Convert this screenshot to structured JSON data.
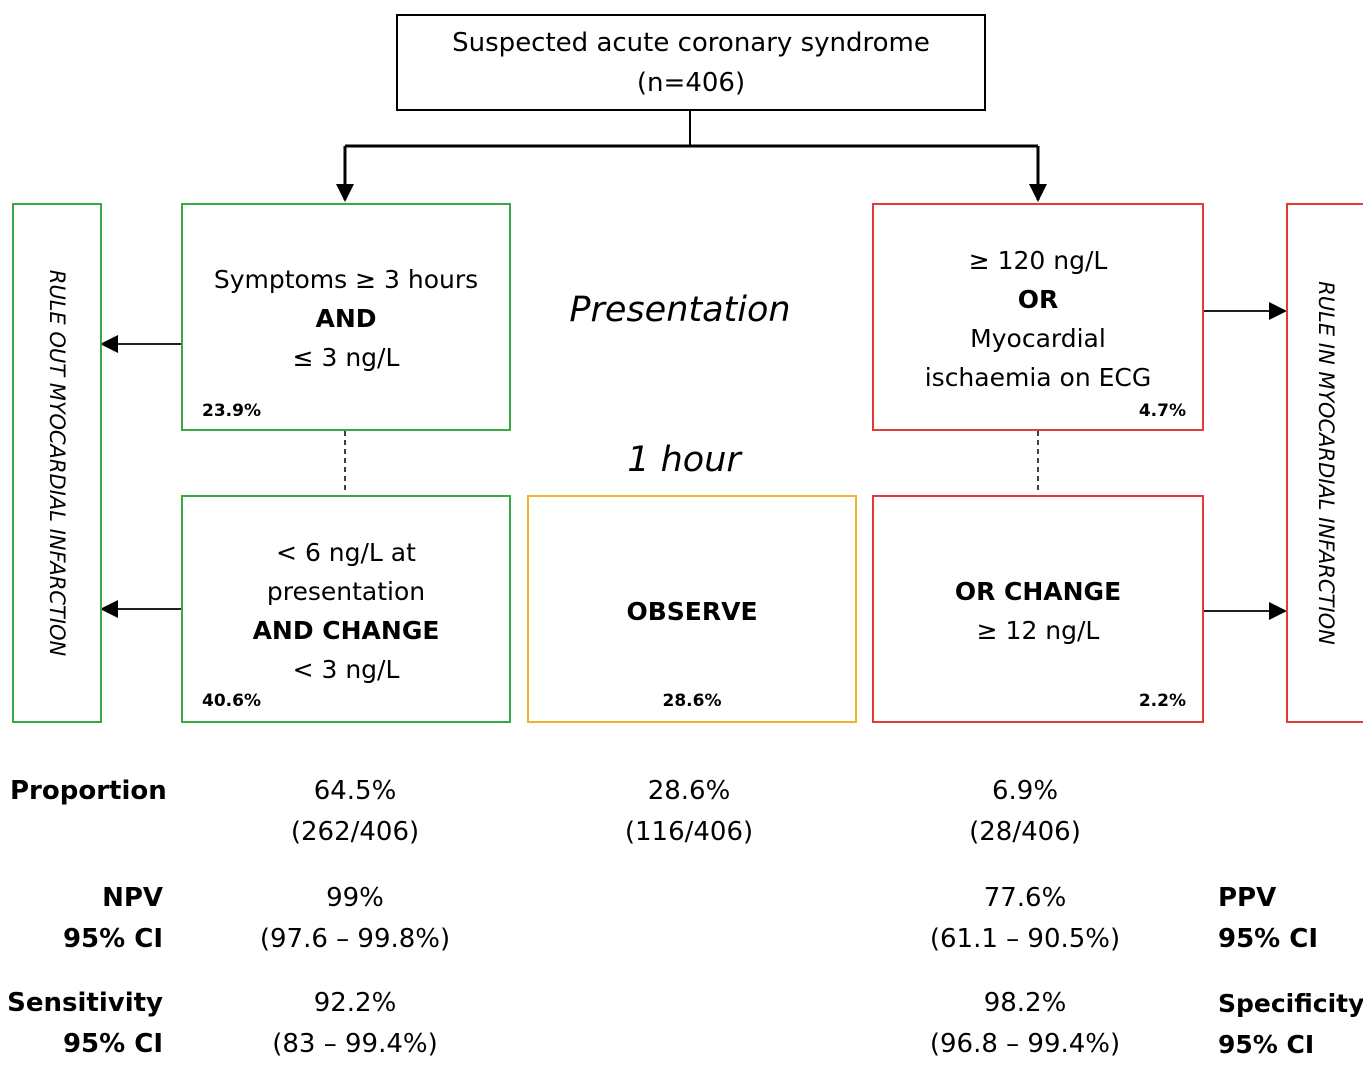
{
  "top_box": {
    "line1": "Suspected acute coronary syndrome",
    "line2": "(n=406)"
  },
  "side_labels": {
    "left": "RULE OUT MYOCARDIAL INFARCTION",
    "right": "RULE IN MYOCARDIAL INFARCTION"
  },
  "stages": {
    "presentation": "Presentation",
    "one_hour": "1 hour"
  },
  "boxes": {
    "rule_out_presentation": {
      "line1": "Symptoms ≥ 3 hours",
      "line2": "AND",
      "line3": "≤ 3 ng/L",
      "pct": "23.9%"
    },
    "rule_out_1h": {
      "line1": "< 6 ng/L at",
      "line2": "presentation",
      "line3": "AND CHANGE",
      "line4": "< 3 ng/L",
      "pct": "40.6%"
    },
    "observe": {
      "label": "OBSERVE",
      "pct": "28.6%"
    },
    "rule_in_presentation": {
      "line1": "≥ 120 ng/L",
      "line2": "OR",
      "line3": "Myocardial",
      "line4": "ischaemia on ECG",
      "pct": "4.7%"
    },
    "rule_in_1h": {
      "line1": "OR CHANGE",
      "line2": "≥ 12 ng/L",
      "pct": "2.2%"
    }
  },
  "stats": {
    "proportion": {
      "label": "Proportion",
      "rule_out": [
        "64.5%",
        "(262/406)"
      ],
      "observe": [
        "28.6%",
        "(116/406)"
      ],
      "rule_in": [
        "6.9%",
        "(28/406)"
      ]
    },
    "npv": {
      "label1": "NPV",
      "label2": "95% CI",
      "value": "99%",
      "ci": "(97.6 – 99.8%)"
    },
    "ppv": {
      "label1": "PPV",
      "label2": "95% CI",
      "value": "77.6%",
      "ci": "(61.1 – 90.5%)"
    },
    "sensitivity": {
      "label1": "Sensitivity",
      "label2": "95% CI",
      "value": "92.2%",
      "ci": "(83 – 99.4%)"
    },
    "specificity": {
      "label1": "Specificity",
      "label2": "95% CI",
      "value": "98.2%",
      "ci": "(96.8 – 99.4%)"
    }
  }
}
